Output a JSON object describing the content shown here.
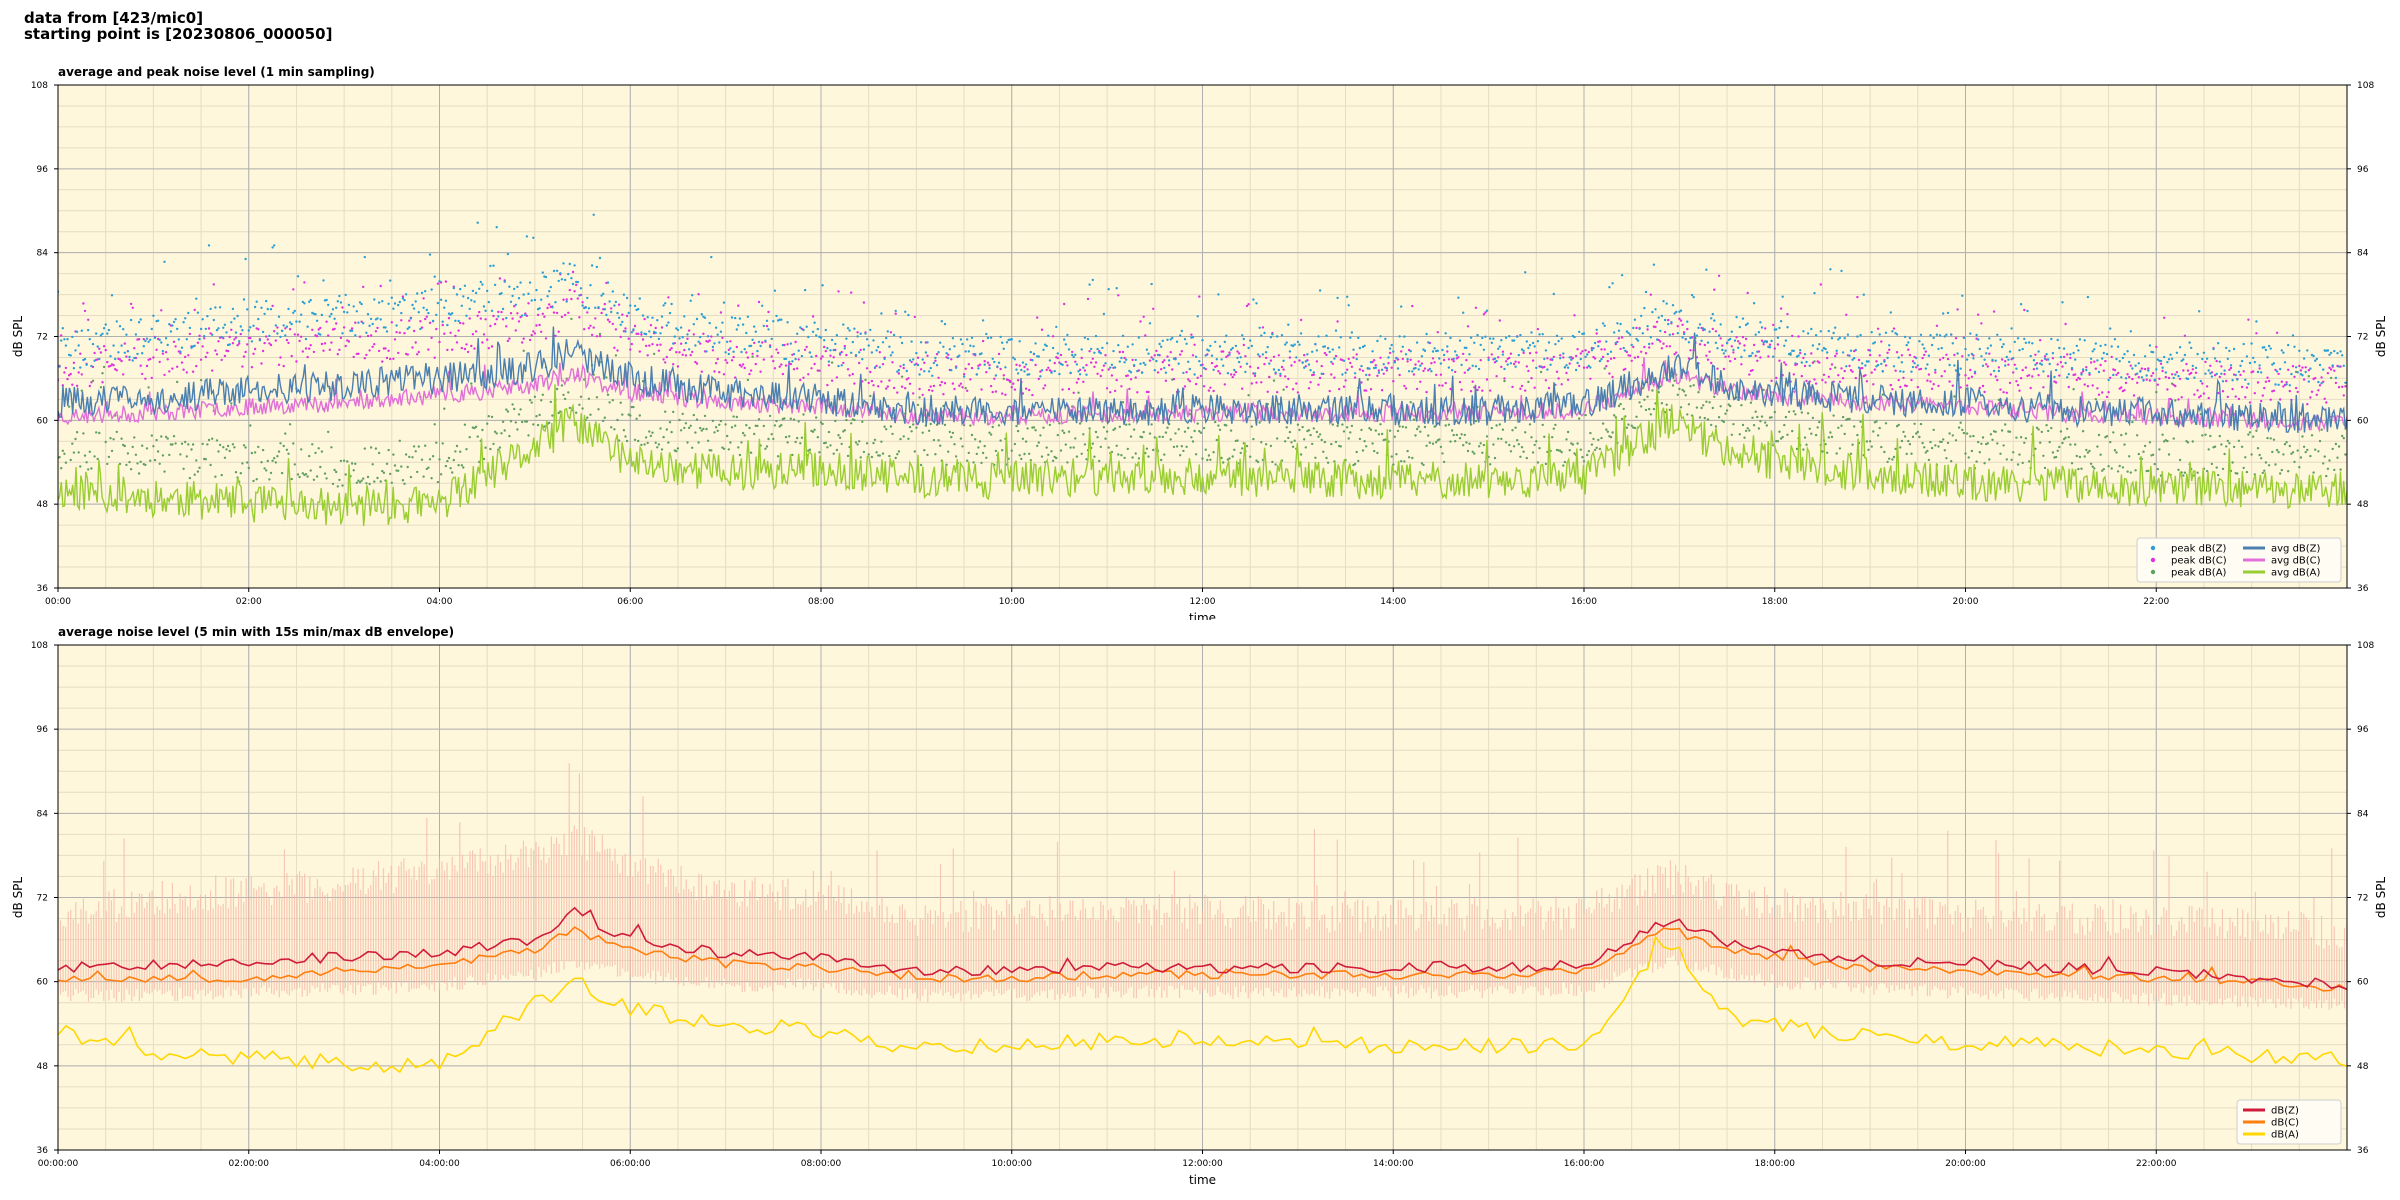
{
  "header": {
    "line1": "data from [423/mic0]",
    "line2": "starting point is [20230806_000050]"
  },
  "colors": {
    "background": "#fff7dc",
    "grid_major": "#b0b0b0",
    "grid_minor": "#e6dcc4",
    "peak_z": "#2a9fd6",
    "peak_c": "#e030e0",
    "peak_a": "#5f9f5f",
    "avg_z": "#4a7fb0",
    "avg_c": "#e070d8",
    "avg_a": "#9acd32",
    "db_z": "#d01c3c",
    "db_c": "#ff7f0e",
    "db_a": "#ffd700",
    "envelope": "#f4b8a8"
  },
  "chart_data": [
    {
      "type": "line",
      "title": "average and peak noise level (1 min sampling)",
      "xlabel": "time",
      "ylabel": "dB SPL",
      "ylim": [
        36,
        108
      ],
      "xlim_hours": [
        0,
        24
      ],
      "yticks": [
        "36",
        "48",
        "60",
        "72",
        "84",
        "96",
        "108"
      ],
      "xticks": [
        "00:00",
        "02:00",
        "04:00",
        "06:00",
        "08:00",
        "10:00",
        "12:00",
        "14:00",
        "16:00",
        "18:00",
        "20:00",
        "22:00"
      ],
      "grid": true,
      "legend_position": "bottom-right",
      "legend": [
        {
          "label": "peak dB(Z)",
          "marker": "dot",
          "color_key": "peak_z"
        },
        {
          "label": "peak dB(C)",
          "marker": "dot",
          "color_key": "peak_c"
        },
        {
          "label": "peak dB(A)",
          "marker": "dot",
          "color_key": "peak_a"
        },
        {
          "label": "avg dB(Z)",
          "marker": "line",
          "color_key": "avg_z"
        },
        {
          "label": "avg dB(C)",
          "marker": "line",
          "color_key": "avg_c"
        },
        {
          "label": "avg dB(A)",
          "marker": "line",
          "color_key": "avg_a"
        }
      ],
      "series": [
        {
          "name": "avg dB(Z)",
          "color_key": "avg_z",
          "x_hours": [
            0,
            1,
            2,
            3,
            4,
            5,
            5.4,
            6,
            7,
            8,
            9,
            10,
            11,
            12,
            13,
            14,
            15,
            16,
            16.9,
            17.5,
            18,
            19,
            20,
            21,
            22,
            23,
            24
          ],
          "values": [
            62.5,
            63,
            64.5,
            65,
            66,
            67.5,
            70,
            66,
            64,
            63,
            61.5,
            61,
            61.5,
            61.5,
            61.5,
            61.5,
            61.5,
            62,
            67.5,
            65,
            64,
            63,
            62.5,
            61.5,
            61,
            60.5,
            60
          ]
        },
        {
          "name": "avg dB(C)",
          "color_key": "avg_c",
          "x_hours": [
            0,
            1,
            2,
            3,
            4,
            5,
            5.4,
            6,
            7,
            8,
            9,
            10,
            11,
            12,
            13,
            14,
            15,
            16,
            16.9,
            17.5,
            18,
            19,
            20,
            21,
            22,
            23,
            24
          ],
          "values": [
            60.5,
            61,
            62,
            62.5,
            63.5,
            65,
            66.5,
            64,
            62.5,
            62,
            60.5,
            60.5,
            61,
            61,
            61,
            61,
            61,
            61.5,
            66.5,
            64.5,
            63.5,
            62.5,
            62,
            61,
            60.5,
            60,
            59.5
          ]
        },
        {
          "name": "avg dB(A)",
          "color_key": "avg_a",
          "x_hours": [
            0,
            1,
            2,
            3,
            4,
            5,
            5.4,
            6,
            7,
            8,
            9,
            10,
            11,
            12,
            13,
            14,
            15,
            16,
            16.9,
            17.5,
            18,
            19,
            20,
            21,
            22,
            23,
            24
          ],
          "values": [
            50,
            49,
            48,
            47.5,
            48,
            56,
            60,
            54,
            52.5,
            53,
            51.5,
            51.5,
            52,
            52,
            51.5,
            51.5,
            51.5,
            51.5,
            60,
            56,
            54,
            52,
            51,
            51,
            50,
            50,
            50
          ]
        },
        {
          "name": "peak dB(Z)",
          "color_key": "peak_z",
          "x_hours": [
            0,
            1,
            2,
            3,
            4,
            5,
            5.4,
            6,
            7,
            8,
            9,
            10,
            11,
            12,
            13,
            14,
            15,
            16,
            16.9,
            17.5,
            18,
            19,
            20,
            21,
            22,
            23,
            24
          ],
          "values": [
            70,
            72,
            74,
            75,
            76,
            78,
            80,
            75,
            72,
            71,
            69,
            69,
            69.5,
            69.5,
            69.5,
            69.5,
            69.5,
            70,
            75,
            72,
            71,
            70,
            69.5,
            69,
            68.5,
            68,
            68
          ]
        },
        {
          "name": "peak dB(C)",
          "color_key": "peak_c",
          "x_hours": [
            0,
            1,
            2,
            3,
            4,
            5,
            5.4,
            6,
            7,
            8,
            9,
            10,
            11,
            12,
            13,
            14,
            15,
            16,
            16.9,
            17.5,
            18,
            19,
            20,
            21,
            22,
            23,
            24
          ],
          "values": [
            67,
            69,
            70.5,
            71,
            72,
            74,
            76,
            72,
            69,
            68,
            66.5,
            66.5,
            67,
            67,
            67,
            67,
            67,
            67.5,
            72,
            69.5,
            68.5,
            67.5,
            67,
            66.5,
            66,
            65.5,
            65
          ]
        },
        {
          "name": "peak dB(A)",
          "color_key": "peak_a",
          "x_hours": [
            0,
            1,
            2,
            3,
            4,
            5,
            5.4,
            6,
            7,
            8,
            9,
            10,
            11,
            12,
            13,
            14,
            15,
            16,
            16.9,
            17.5,
            18,
            19,
            20,
            21,
            22,
            23,
            24
          ],
          "values": [
            56,
            55,
            54,
            53.5,
            54,
            61,
            64,
            59,
            57.5,
            58,
            56.5,
            56.5,
            57,
            57,
            56.5,
            56.5,
            56.5,
            56.5,
            64,
            61,
            59,
            57,
            56,
            56,
            55,
            55,
            55
          ]
        }
      ]
    },
    {
      "type": "line",
      "title": "average noise level (5 min with 15s min/max dB envelope)",
      "xlabel": "time",
      "ylabel": "dB SPL",
      "ylim": [
        36,
        108
      ],
      "xlim_hours": [
        0,
        24
      ],
      "yticks": [
        "36",
        "48",
        "60",
        "72",
        "84",
        "96",
        "108"
      ],
      "xticks": [
        "00:00:00",
        "02:00:00",
        "04:00:00",
        "06:00:00",
        "08:00:00",
        "10:00:00",
        "12:00:00",
        "14:00:00",
        "16:00:00",
        "18:00:00",
        "20:00:00",
        "22:00:00"
      ],
      "grid": true,
      "legend_position": "bottom-right",
      "legend": [
        {
          "label": "dB(Z)",
          "marker": "line",
          "color_key": "db_z"
        },
        {
          "label": "dB(C)",
          "marker": "line",
          "color_key": "db_c"
        },
        {
          "label": "dB(A)",
          "marker": "line",
          "color_key": "db_a"
        }
      ],
      "series": [
        {
          "name": "dB(Z)",
          "color_key": "db_z",
          "x_hours": [
            0,
            1,
            2,
            3,
            4,
            5,
            5.4,
            6,
            7,
            8,
            9,
            10,
            11,
            12,
            13,
            14,
            15,
            16,
            16.9,
            17.5,
            18,
            19,
            20,
            21,
            22,
            23,
            24
          ],
          "values": [
            62,
            62.5,
            63,
            63.5,
            64,
            66,
            70,
            66,
            64,
            63.5,
            61.5,
            61.5,
            62,
            62,
            62,
            62,
            62,
            62.5,
            69,
            65.5,
            64.5,
            63,
            62.5,
            62,
            61.5,
            60.5,
            59.5
          ]
        },
        {
          "name": "dB(C)",
          "color_key": "db_c",
          "x_hours": [
            0,
            1,
            2,
            3,
            4,
            5,
            5.4,
            6,
            7,
            8,
            9,
            10,
            11,
            12,
            13,
            14,
            15,
            16,
            16.9,
            17.5,
            18,
            19,
            20,
            21,
            22,
            23,
            24
          ],
          "values": [
            60.5,
            60.5,
            60.5,
            61.5,
            62.5,
            64.5,
            67.5,
            64.5,
            62.5,
            62,
            60.5,
            60.5,
            61,
            61,
            61,
            61,
            61,
            61.5,
            67.5,
            64.5,
            63.5,
            62,
            61.5,
            61,
            60.5,
            60,
            59
          ]
        },
        {
          "name": "dB(A)",
          "color_key": "db_a",
          "x_hours": [
            0,
            1,
            2,
            3,
            4,
            5,
            5.4,
            6,
            7,
            8,
            9,
            10,
            11,
            12,
            13,
            14,
            15,
            16,
            16.9,
            17.5,
            18,
            19,
            20,
            21,
            22,
            23,
            24
          ],
          "values": [
            53,
            50,
            49,
            48.5,
            48,
            57,
            60,
            56,
            54,
            53,
            50.5,
            51,
            51.5,
            52,
            51,
            51,
            51,
            51,
            66,
            55,
            54,
            52,
            51,
            51,
            50,
            49.5,
            49
          ]
        },
        {
          "name": "envelope max",
          "color_key": "envelope",
          "x_hours": [
            0,
            1,
            2,
            3,
            4,
            5,
            5.4,
            6,
            7,
            8,
            9,
            10,
            11,
            12,
            13,
            14,
            15,
            16,
            16.9,
            17.5,
            18,
            19,
            20,
            21,
            22,
            23,
            24
          ],
          "values": [
            68,
            71,
            72,
            73,
            75,
            77,
            80,
            75,
            72,
            71,
            68,
            69,
            69,
            69,
            68.5,
            68.5,
            68.5,
            69,
            74,
            71,
            70,
            69,
            68.5,
            68,
            67.5,
            67,
            66
          ]
        },
        {
          "name": "envelope min",
          "color_key": "envelope",
          "x_hours": [
            0,
            1,
            2,
            3,
            4,
            5,
            5.4,
            6,
            7,
            8,
            9,
            10,
            11,
            12,
            13,
            14,
            15,
            16,
            16.9,
            17.5,
            18,
            19,
            20,
            21,
            22,
            23,
            24
          ],
          "values": [
            58,
            58,
            58.5,
            59,
            59.5,
            61,
            63,
            61,
            59.5,
            59.5,
            58,
            58,
            58.5,
            58.5,
            58.5,
            58.5,
            58.5,
            59,
            63,
            61,
            60,
            59,
            58.5,
            58,
            57.5,
            57,
            56.5
          ]
        }
      ]
    }
  ]
}
